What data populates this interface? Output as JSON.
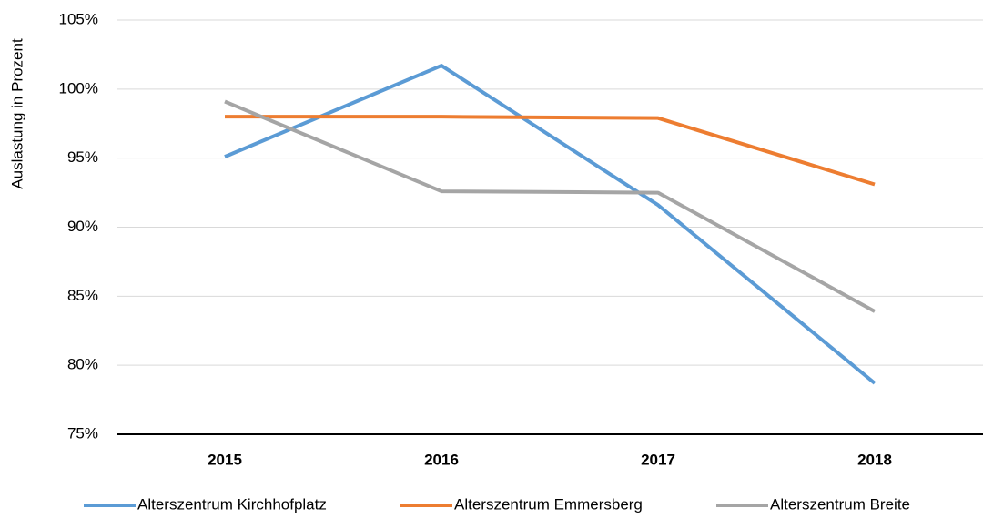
{
  "chart_data": {
    "type": "line",
    "y_label": "Auslastung in Prozent",
    "categories": [
      "2015",
      "2016",
      "2017",
      "2018"
    ],
    "series": [
      {
        "name": "Alterszentrum Kirchhofplatz",
        "color": "#5b9bd5",
        "values": [
          95.1,
          101.7,
          91.6,
          78.7
        ]
      },
      {
        "name": "Alterszentrum Emmersberg",
        "color": "#ed7d31",
        "values": [
          98.0,
          98.0,
          97.9,
          93.1
        ]
      },
      {
        "name": "Alterszentrum Breite",
        "color": "#a5a5a5",
        "values": [
          99.1,
          92.6,
          92.5,
          83.9
        ]
      }
    ],
    "ylim": [
      75,
      105
    ],
    "yticks": [
      {
        "value": 75,
        "label": "75%"
      },
      {
        "value": 80,
        "label": "80%"
      },
      {
        "value": 85,
        "label": "85%"
      },
      {
        "value": 90,
        "label": "90%"
      },
      {
        "value": 95,
        "label": "95%"
      },
      {
        "value": 100,
        "label": "100%"
      },
      {
        "value": 105,
        "label": "105%"
      }
    ],
    "grid": true,
    "legend": "bottom"
  }
}
